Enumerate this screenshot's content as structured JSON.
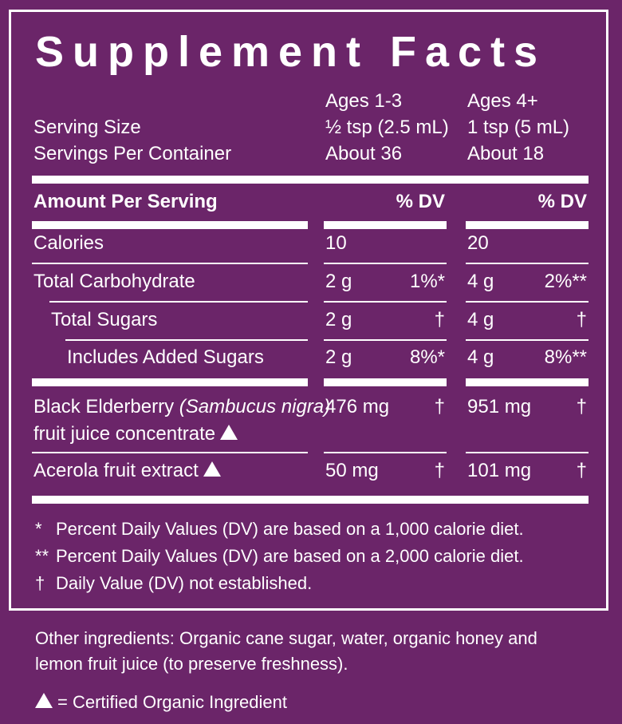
{
  "title": "Supplement Facts",
  "header": {
    "col1_age": "Ages 1-3",
    "col2_age": "Ages 4+",
    "serving_size_label": "Serving Size",
    "servings_label": "Servings Per Container",
    "col1_serving": "½ tsp (2.5 mL)",
    "col2_serving": "1 tsp (5 mL)",
    "col1_servings": "About 36",
    "col2_servings": "About 18"
  },
  "amount_per_serving": "Amount Per Serving",
  "dv_header": "% DV",
  "rows": [
    {
      "label": "Calories",
      "c1": "10",
      "c1dv": "",
      "c2": "20",
      "c2dv": ""
    },
    {
      "label": "Total Carbohydrate",
      "c1": "2 g",
      "c1dv": "1%*",
      "c2": "4 g",
      "c2dv": "2%**"
    },
    {
      "label": "Total Sugars",
      "c1": "2 g",
      "c1dv": "†",
      "c2": "4 g",
      "c2dv": "†"
    },
    {
      "label": "Includes Added Sugars",
      "c1": "2 g",
      "c1dv": "8%*",
      "c2": "4 g",
      "c2dv": "8%**"
    },
    {
      "label": "Black Elderberry",
      "label_italic": "(Sambucus nigra)",
      "label_line2": "fruit juice concentrate",
      "c1": "476 mg",
      "c1dv": "†",
      "c2": "951 mg",
      "c2dv": "†"
    },
    {
      "label": "Acerola fruit extract",
      "c1": "50 mg",
      "c1dv": "†",
      "c2": "101 mg",
      "c2dv": "†"
    }
  ],
  "footnotes": [
    {
      "mark": "*",
      "text": "Percent Daily Values (DV) are based on a 1,000 calorie diet."
    },
    {
      "mark": "**",
      "text": "Percent Daily Values (DV) are based on a 2,000 calorie diet."
    },
    {
      "mark": "†",
      "text": "Daily Value (DV) not established."
    }
  ],
  "other_ingredients_line1": "Other ingredients: Organic cane sugar, water, organic honey and",
  "other_ingredients_line2": "lemon fruit juice (to preserve freshness).",
  "organic_legend": "= Certified Organic Ingredient",
  "colors": {
    "background": "#6b2569",
    "text": "#ffffff"
  },
  "icons": {
    "organic_marker": "triangle-icon"
  }
}
